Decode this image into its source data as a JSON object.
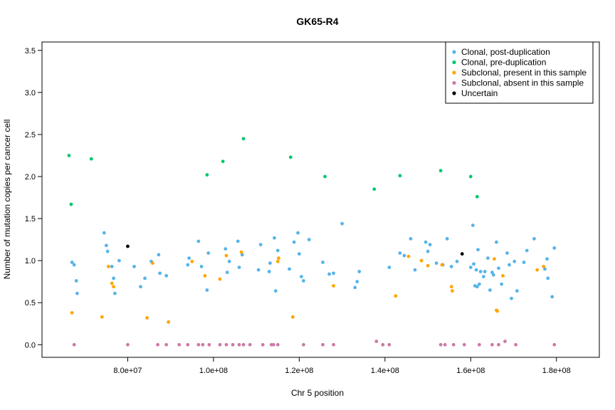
{
  "chart_data": {
    "type": "scatter",
    "title": "GK65-R4",
    "xlabel": "Chr 5 position",
    "ylabel": "Number of mutation copies per cancer cell",
    "xlim": [
      60000000,
      190000000
    ],
    "ylim": [
      -0.15,
      3.6
    ],
    "x_ticks": [
      80000000,
      100000000,
      120000000,
      140000000,
      160000000,
      180000000
    ],
    "x_tick_labels": [
      "8.0e+07",
      "1.0e+08",
      "1.2e+08",
      "1.4e+08",
      "1.6e+08",
      "1.8e+08"
    ],
    "y_ticks": [
      0,
      0.5,
      1,
      1.5,
      2,
      2.5,
      3,
      3.5
    ],
    "y_tick_labels": [
      "0.0",
      "0.5",
      "1.0",
      "1.5",
      "2.0",
      "2.5",
      "3.0",
      "3.5"
    ],
    "grid": false,
    "legend_position": "top-right",
    "series": [
      {
        "name": "Clonal, post-duplication",
        "color": "#56B4E9",
        "x": [
          67000000,
          67500000,
          68000000,
          68200000,
          74500000,
          75000000,
          75300000,
          76300000,
          76700000,
          77000000,
          78000000,
          81500000,
          83000000,
          84000000,
          85500000,
          87200000,
          87500000,
          89000000,
          94000000,
          94300000,
          96500000,
          97200000,
          98500000,
          98800000,
          102800000,
          103200000,
          103700000,
          105700000,
          106000000,
          106700000,
          110500000,
          111000000,
          113000000,
          113200000,
          114200000,
          114500000,
          115000000,
          117700000,
          118800000,
          119700000,
          120000000,
          120500000,
          121000000,
          122300000,
          125500000,
          127000000,
          128000000,
          130000000,
          133000000,
          133500000,
          134000000,
          141000000,
          143500000,
          144500000,
          146000000,
          147000000,
          149500000,
          150000000,
          150500000,
          152000000,
          153500000,
          154500000,
          155500000,
          156800000,
          160000000,
          160500000,
          160700000,
          161000000,
          161300000,
          161500000,
          161700000,
          162000000,
          162300000,
          163000000,
          163300000,
          164000000,
          164500000,
          165000000,
          165300000,
          166000000,
          166500000,
          167200000,
          168500000,
          169000000,
          169500000,
          170200000,
          170800000,
          172400000,
          173100000,
          174800000,
          177300000,
          177800000,
          178000000,
          179000000,
          179500000
        ],
        "y": [
          0.98,
          0.95,
          0.76,
          0.61,
          1.33,
          1.18,
          1.11,
          0.93,
          0.79,
          0.61,
          1.0,
          0.93,
          0.69,
          0.79,
          0.99,
          1.07,
          0.85,
          0.82,
          0.95,
          1.03,
          1.23,
          0.93,
          0.65,
          1.09,
          1.14,
          0.86,
          0.99,
          1.23,
          0.92,
          1.07,
          0.89,
          1.19,
          0.87,
          0.97,
          1.27,
          0.64,
          1.12,
          0.9,
          1.22,
          1.33,
          1.08,
          0.81,
          0.76,
          1.25,
          0.98,
          0.84,
          0.85,
          1.44,
          0.68,
          0.75,
          0.87,
          0.92,
          1.09,
          1.06,
          1.26,
          0.89,
          1.22,
          1.11,
          1.19,
          0.97,
          0.95,
          1.26,
          0.93,
          0.99,
          0.92,
          1.42,
          0.96,
          0.7,
          0.89,
          0.69,
          1.13,
          0.72,
          0.87,
          0.81,
          0.87,
          1.03,
          0.65,
          0.86,
          0.83,
          1.22,
          0.91,
          0.72,
          1.09,
          0.95,
          0.55,
          0.99,
          0.64,
          0.98,
          1.12,
          1.26,
          0.9,
          1.02,
          0.79,
          0.57,
          1.15
        ],
        "point_labels": []
      },
      {
        "name": "Clonal, pre-duplication",
        "color": "#00C86E",
        "x": [
          66300000,
          66800000,
          71500000,
          98500000,
          102200000,
          107000000,
          118000000,
          126000000,
          137500000,
          143500000,
          153000000,
          160000000,
          161500000
        ],
        "y": [
          2.25,
          1.67,
          2.21,
          2.02,
          2.18,
          2.45,
          2.23,
          2.0,
          1.85,
          2.01,
          2.07,
          2.0,
          1.76
        ],
        "point_labels": []
      },
      {
        "name": "Subclonal, present in this sample",
        "color": "#FFA500",
        "x": [
          67000000,
          74000000,
          75500000,
          76300000,
          76700000,
          84500000,
          85800000,
          89500000,
          95000000,
          98000000,
          101500000,
          103000000,
          106500000,
          115000000,
          115200000,
          118500000,
          128000000,
          142500000,
          145500000,
          148500000,
          150000000,
          153300000,
          155500000,
          155700000,
          165500000,
          166000000,
          166200000,
          167500000,
          175500000,
          177000000
        ],
        "y": [
          0.38,
          0.33,
          0.93,
          0.73,
          0.69,
          0.32,
          0.97,
          0.27,
          0.99,
          0.82,
          0.78,
          1.06,
          1.1,
          0.99,
          1.03,
          0.33,
          0.7,
          0.58,
          1.05,
          1.0,
          0.94,
          0.95,
          0.69,
          0.64,
          1.02,
          0.41,
          0.4,
          0.82,
          0.89,
          0.93
        ],
        "point_labels": []
      },
      {
        "name": "Subclonal, absent in this sample",
        "color": "#CC79A7",
        "x": [
          67500000,
          80000000,
          87000000,
          89000000,
          92000000,
          94000000,
          96500000,
          97500000,
          99000000,
          101500000,
          103000000,
          104500000,
          106000000,
          107000000,
          108500000,
          111500000,
          113500000,
          114000000,
          115000000,
          121000000,
          125500000,
          128000000,
          138000000,
          139500000,
          141000000,
          153000000,
          154000000,
          156000000,
          158500000,
          162000000,
          165000000,
          166500000,
          168000000,
          170500000,
          179500000
        ],
        "y": [
          0.0,
          0.0,
          0.0,
          0.0,
          0.0,
          0.0,
          0.0,
          0.0,
          0.0,
          0.0,
          0.0,
          0.0,
          0.0,
          0.0,
          0.0,
          0.0,
          0.0,
          0.0,
          0.0,
          0.0,
          0.0,
          0.0,
          0.04,
          0.0,
          0.0,
          0.0,
          0.0,
          0.0,
          0.0,
          0.0,
          0.0,
          0.0,
          0.04,
          0.0,
          0.0
        ],
        "point_labels": []
      },
      {
        "name": "Uncertain",
        "color": "#000000",
        "x": [
          80000000,
          158000000
        ],
        "y": [
          1.17,
          1.08
        ],
        "point_labels": []
      }
    ]
  }
}
